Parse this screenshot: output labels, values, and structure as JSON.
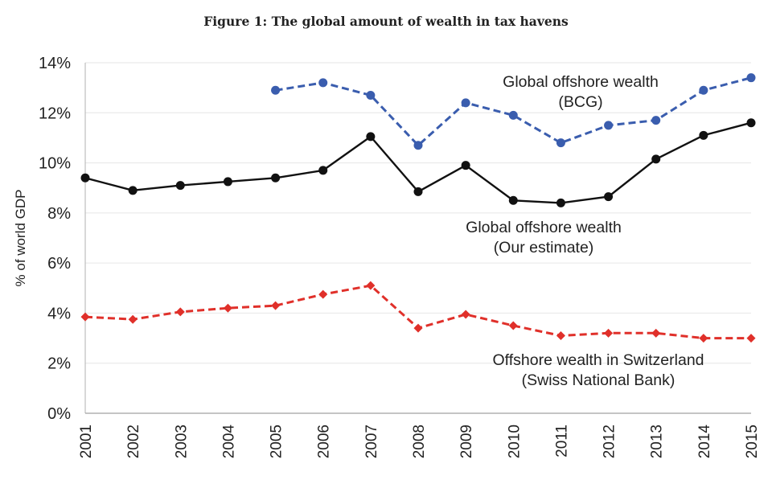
{
  "figure": {
    "title": "Figure 1: The global amount of wealth in tax havens"
  },
  "chart_data": {
    "type": "line",
    "title": "Figure 1: The global amount of wealth in tax havens",
    "xlabel": "",
    "ylabel": "% of world GDP",
    "ylim": [
      0,
      14
    ],
    "yticks": [
      0,
      2,
      4,
      6,
      8,
      10,
      12,
      14
    ],
    "ytick_labels": [
      "0%",
      "2%",
      "4%",
      "6%",
      "8%",
      "10%",
      "12%",
      "14%"
    ],
    "grid": "horizontal",
    "legend": "none",
    "x": [
      "2001",
      "2002",
      "2003",
      "2004",
      "2005",
      "2006",
      "2007",
      "2008",
      "2009",
      "2010",
      "2011",
      "2012",
      "2013",
      "2014",
      "2015"
    ],
    "series": [
      {
        "name": "Global offshore wealth (BCG)",
        "annotation": [
          "Global offshore wealth",
          "(BCG)"
        ],
        "color": "#3a5dae",
        "style": "dashed",
        "marker": "circle",
        "values": [
          null,
          null,
          null,
          null,
          12.9,
          13.2,
          12.7,
          10.7,
          12.4,
          11.9,
          10.8,
          11.5,
          11.7,
          12.9,
          13.4
        ]
      },
      {
        "name": "Global offshore wealth (Our estimate)",
        "annotation": [
          "Global offshore wealth",
          "(Our estimate)"
        ],
        "color": "#111111",
        "style": "solid",
        "marker": "circle",
        "values": [
          9.4,
          8.9,
          9.1,
          9.25,
          9.4,
          9.7,
          11.05,
          8.85,
          9.9,
          8.5,
          8.4,
          8.65,
          10.15,
          11.1,
          11.6
        ]
      },
      {
        "name": "Offshore wealth in Switzerland (Swiss National Bank)",
        "annotation": [
          "Offshore wealth in Switzerland",
          "(Swiss National Bank)"
        ],
        "color": "#e0302a",
        "style": "dashed",
        "marker": "diamond",
        "values": [
          3.85,
          3.75,
          4.05,
          4.2,
          4.3,
          4.75,
          5.1,
          3.4,
          3.95,
          3.5,
          3.1,
          3.2,
          3.2,
          3.0,
          3.0
        ]
      }
    ]
  }
}
